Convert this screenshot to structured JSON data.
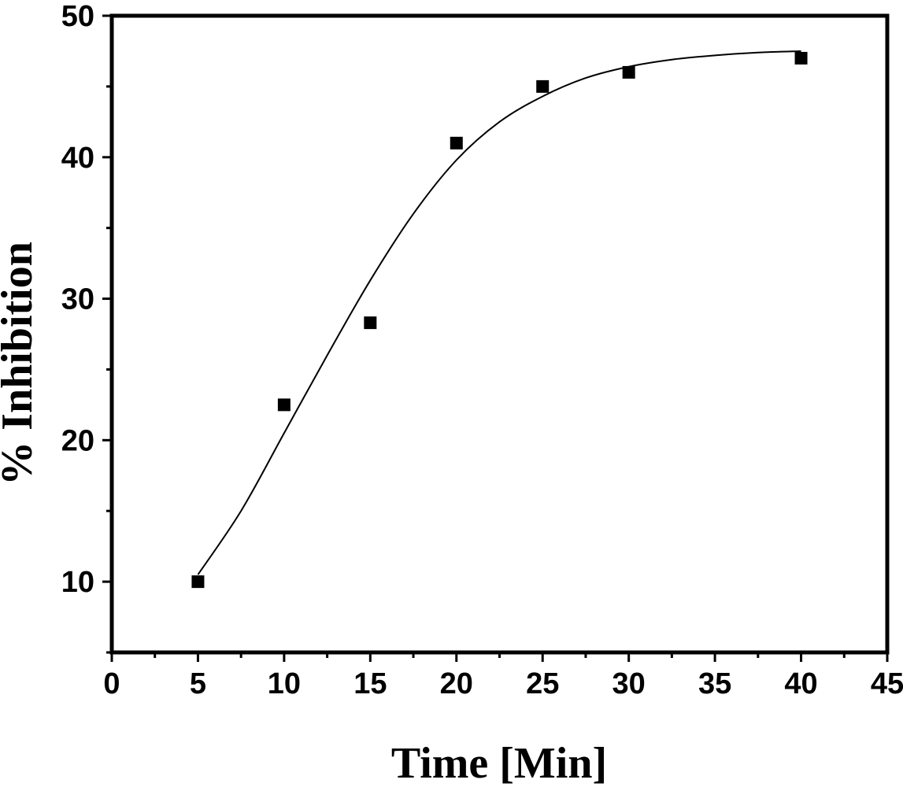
{
  "chart_data": {
    "type": "scatter",
    "title": "",
    "xlabel": "Time [Min]",
    "ylabel": "% Inhibition",
    "xlim": [
      0,
      45
    ],
    "ylim": [
      5,
      50
    ],
    "xticks": [
      0,
      5,
      10,
      15,
      20,
      25,
      30,
      35,
      40,
      45
    ],
    "yticks": [
      10,
      20,
      30,
      40,
      50
    ],
    "grid": false,
    "series": [
      {
        "marker": "square",
        "color": "#000000",
        "x": [
          5,
          10,
          15,
          20,
          25,
          30,
          40
        ],
        "y": [
          10,
          22.5,
          28.3,
          41,
          45,
          46,
          47
        ]
      }
    ],
    "fit_curve": {
      "style": "line",
      "color": "#000000",
      "x": [
        5,
        7.5,
        10,
        12.5,
        15,
        17.5,
        20,
        22.5,
        25,
        27.5,
        30,
        32.5,
        35,
        37.5,
        40
      ],
      "y": [
        10.5,
        15.0,
        20.5,
        26.0,
        31.3,
        36.0,
        39.8,
        42.5,
        44.3,
        45.6,
        46.4,
        46.9,
        47.2,
        47.4,
        47.5
      ]
    }
  }
}
